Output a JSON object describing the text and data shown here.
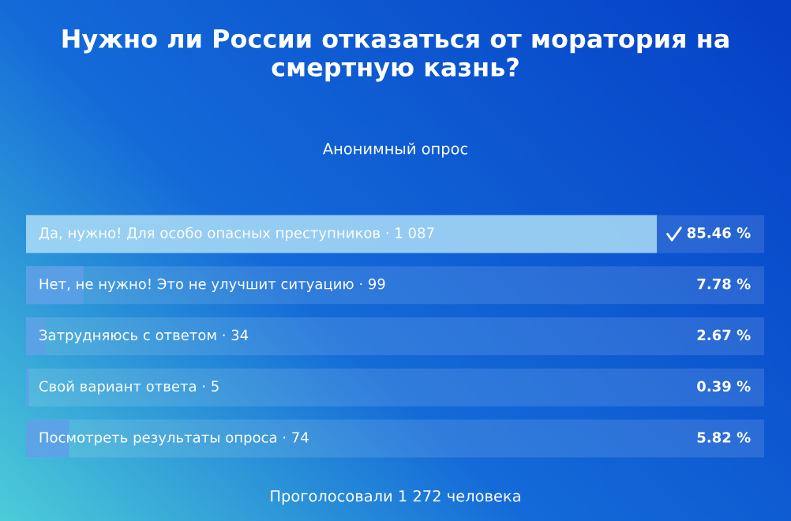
{
  "chart_data": {
    "type": "bar",
    "orientation": "horizontal",
    "title": "Нужно ли России отказаться от моратория на смертную казнь?",
    "subtitle": "Анонимный опрос",
    "categories": [
      "Да, нужно! Для особо опасных преступников · 1 087",
      "Нет, не нужно! Это не улучшит ситуацию · 99",
      "Затрудняюсь с ответом · 34",
      "Свой вариант ответа · 5",
      "Посмотреть результаты опроса · 74"
    ],
    "values": [
      85.46,
      7.78,
      2.67,
      0.39,
      5.82
    ],
    "value_labels": [
      "85.46 %",
      "7.78 %",
      "2.67 %",
      "0.39 %",
      "5.82 %"
    ],
    "colors": [
      "#a8daf6",
      "#5d9fe8",
      "#5d9fe8",
      "#5d9fe8",
      "#5d9fe8"
    ],
    "xlim": [
      0,
      100
    ],
    "annotations": [
      "Проголосовали 1 272 человека"
    ]
  }
}
